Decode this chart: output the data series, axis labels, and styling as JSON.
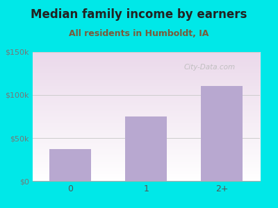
{
  "title": "Median family income by earners",
  "subtitle": "All residents in Humboldt, IA",
  "categories": [
    "0",
    "1",
    "2+"
  ],
  "values": [
    37000,
    75000,
    110000
  ],
  "bar_color": "#b8a8d0",
  "ylim": [
    0,
    150000
  ],
  "yticks": [
    0,
    50000,
    100000,
    150000
  ],
  "ytick_labels": [
    "$0",
    "$50k",
    "$100k",
    "$150k"
  ],
  "bg_outer": "#00e8e8",
  "title_fontsize": 12,
  "subtitle_fontsize": 9,
  "title_color": "#222222",
  "subtitle_color": "#7a5a3a",
  "watermark": "City-Data.com"
}
